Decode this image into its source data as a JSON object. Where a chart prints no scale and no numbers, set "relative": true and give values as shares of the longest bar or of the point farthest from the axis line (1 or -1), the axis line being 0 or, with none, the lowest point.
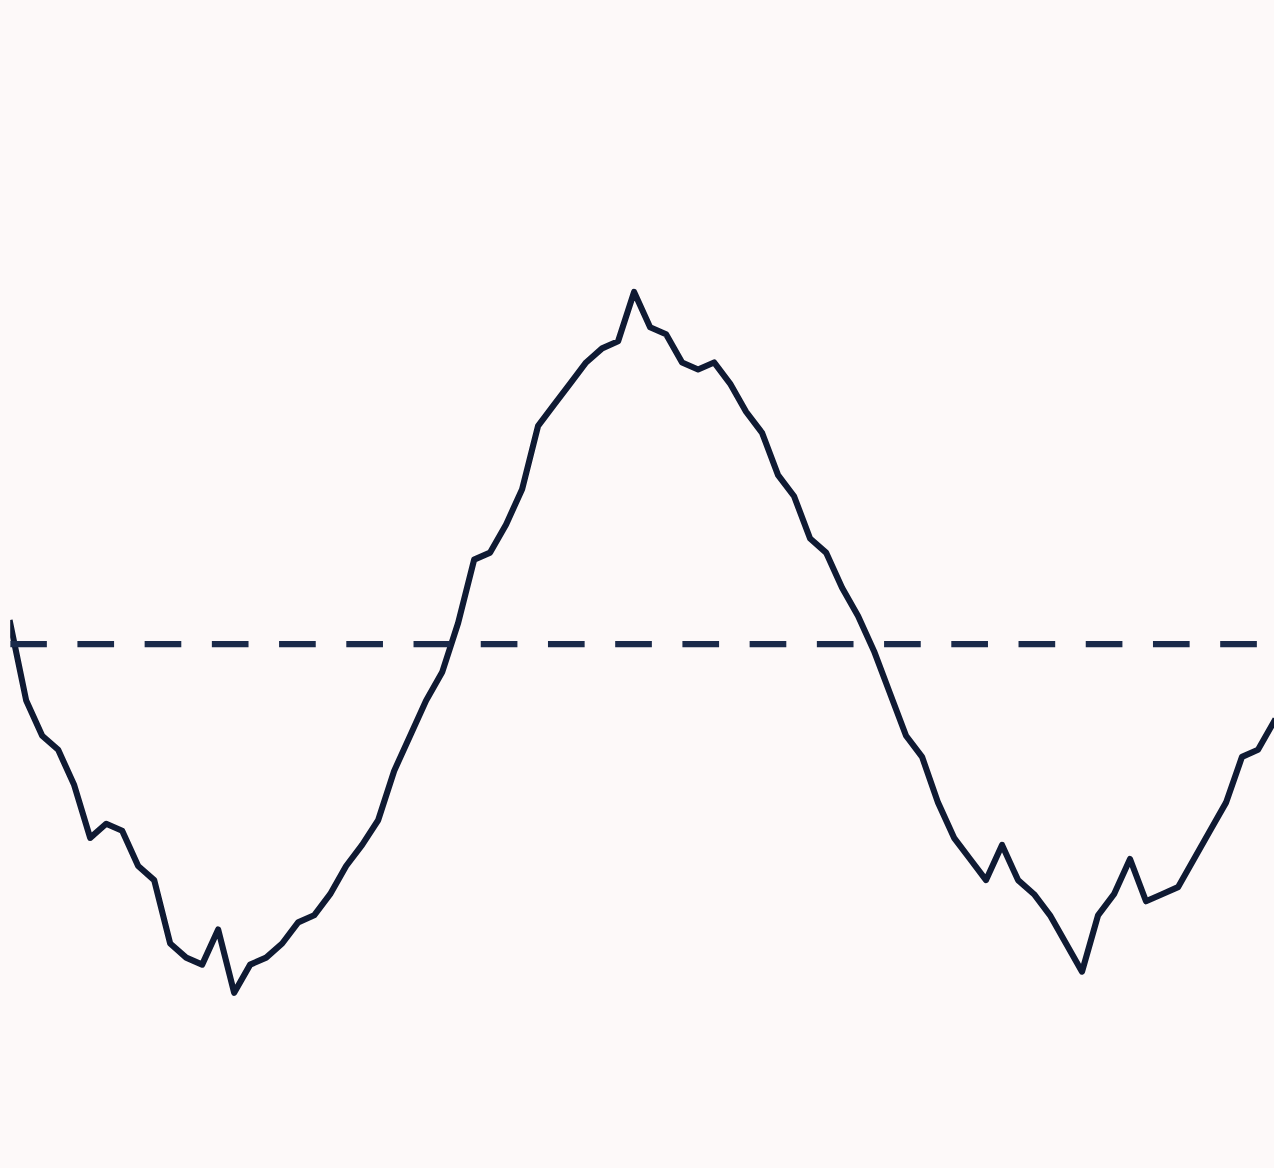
{
  "chart_data": {
    "type": "line",
    "relative": true,
    "categories": [
      null,
      null,
      null,
      null,
      null,
      null,
      null,
      null,
      null,
      null,
      null,
      null,
      null,
      null,
      null,
      null,
      null,
      null,
      null,
      null,
      null,
      null,
      null,
      null,
      null,
      null,
      null,
      null,
      null,
      null,
      null,
      null,
      null,
      null,
      null,
      null,
      null,
      null,
      null,
      null,
      null,
      null,
      null,
      null,
      null,
      null,
      null,
      null,
      null,
      null,
      null,
      null,
      null,
      null,
      null,
      null,
      null,
      null,
      null,
      null,
      null,
      null,
      null,
      null,
      null,
      null,
      null,
      null,
      null,
      null,
      null,
      null,
      null,
      null,
      null,
      null,
      null,
      null,
      null,
      null
    ],
    "series": [
      {
        "color": "#0f1a33",
        "values": [
          0.06,
          -0.16,
          -0.26,
          -0.3,
          -0.4,
          -0.55,
          -0.51,
          -0.53,
          -0.63,
          -0.67,
          -0.85,
          -0.89,
          -0.91,
          -0.81,
          -0.99,
          -0.91,
          -0.89,
          -0.85,
          -0.79,
          -0.77,
          -0.71,
          -0.63,
          -0.57,
          -0.5,
          -0.36,
          -0.26,
          -0.16,
          -0.08,
          0.06,
          0.24,
          0.26,
          0.34,
          0.44,
          0.62,
          0.68,
          0.74,
          0.8,
          0.84,
          0.86,
          1.0,
          0.9,
          0.88,
          0.8,
          0.78,
          0.8,
          0.74,
          0.66,
          0.6,
          0.48,
          0.42,
          0.3,
          0.26,
          0.16,
          0.08,
          -0.02,
          -0.14,
          -0.26,
          -0.32,
          -0.45,
          -0.55,
          -0.61,
          -0.67,
          -0.57,
          -0.67,
          -0.71,
          -0.77,
          -0.85,
          -0.93,
          -0.77,
          -0.71,
          -0.61,
          -0.73,
          -0.71,
          -0.69,
          -0.61,
          -0.53,
          -0.45,
          -0.32,
          -0.3,
          -0.22
        ]
      }
    ],
    "ref_lines": [
      {
        "axis": "y",
        "value": 0,
        "color": "#1a2a4a",
        "line_style": "dashed"
      }
    ],
    "line_style": "solid",
    "marker": "none",
    "legend": false
  }
}
